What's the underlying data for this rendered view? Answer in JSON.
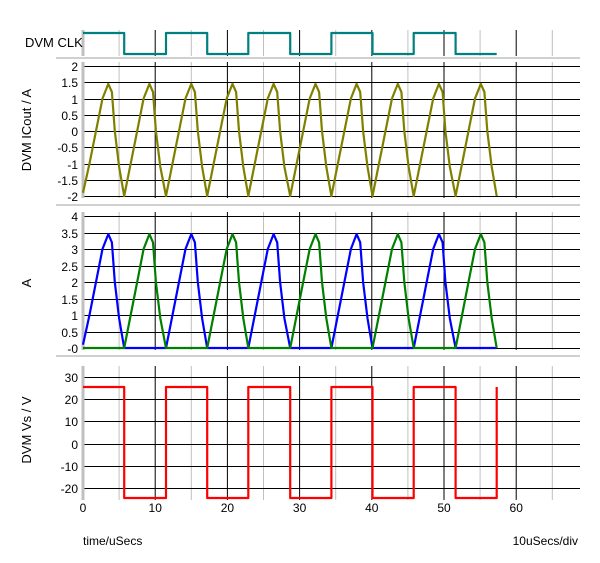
{
  "chart_data": [
    {
      "type": "line",
      "ylabel": "DVM CLK",
      "digital": true,
      "color": "#008080",
      "series": [
        {
          "x": [
            0,
            5.7,
            5.7,
            11.5,
            11.5,
            17.2,
            17.2,
            22.9,
            22.9,
            28.7,
            28.7,
            34.4,
            34.4,
            40.1,
            40.1,
            45.8,
            45.8,
            51.6,
            51.6,
            57.3
          ],
          "y": [
            1,
            1,
            0,
            0,
            1,
            1,
            0,
            0,
            1,
            1,
            0,
            0,
            1,
            1,
            0,
            0,
            1,
            1,
            0,
            0
          ],
          "color": "#008080"
        }
      ]
    },
    {
      "type": "line",
      "ylabel": "DVM ICout / A",
      "ylim": [
        -2,
        2
      ],
      "yticks": [
        "2",
        "1.5",
        "1",
        "0.5",
        "0",
        "-0.5",
        "-1",
        "-1.5",
        "-2"
      ],
      "series": [
        {
          "color": "#808000",
          "x": [
            0,
            0.9,
            1.8,
            2.7,
            3.5,
            4.0,
            4.4,
            5.0,
            5.7,
            6.6,
            7.5,
            8.4,
            9.2,
            9.7,
            10.1,
            10.7,
            11.5,
            12.4,
            13.3,
            14.2,
            15.0,
            15.5,
            15.9,
            16.5,
            17.2,
            18.1,
            19.0,
            19.9,
            20.7,
            21.2,
            21.6,
            22.2,
            22.9,
            23.8,
            24.7,
            25.6,
            26.4,
            26.9,
            27.3,
            27.9,
            28.7,
            29.6,
            30.5,
            31.4,
            32.2,
            32.7,
            33.1,
            33.7,
            34.4,
            35.3,
            36.2,
            37.1,
            37.9,
            38.4,
            38.8,
            39.4,
            40.1,
            41.0,
            41.9,
            42.8,
            43.6,
            44.1,
            44.5,
            45.1,
            45.8,
            46.7,
            47.6,
            48.5,
            49.3,
            49.8,
            50.2,
            50.8,
            51.6,
            52.5,
            53.4,
            54.3,
            55.1,
            55.6,
            56.0,
            56.6,
            57.3
          ],
          "y": [
            -1.9,
            -1,
            0,
            1,
            1.45,
            1.2,
            0,
            -1.1,
            -2,
            -1,
            0,
            1,
            1.45,
            1.2,
            0,
            -1.1,
            -2,
            -1,
            0,
            1,
            1.45,
            1.2,
            0,
            -1.1,
            -2,
            -1,
            0,
            1,
            1.45,
            1.2,
            0,
            -1.1,
            -2,
            -1,
            0,
            1,
            1.45,
            1.2,
            0,
            -1.1,
            -2,
            -1,
            0,
            1,
            1.45,
            1.2,
            0,
            -1.1,
            -2,
            -1,
            0,
            1,
            1.45,
            1.2,
            0,
            -1.1,
            -2,
            -1,
            0,
            1,
            1.45,
            1.2,
            0,
            -1.1,
            -2,
            -1,
            0,
            1,
            1.45,
            1.2,
            0,
            -1.1,
            -2,
            -1,
            0,
            1,
            1.45,
            1.2,
            0,
            -1.1,
            -2
          ]
        }
      ]
    },
    {
      "type": "line",
      "ylabel": "A",
      "ylim": [
        0,
        4
      ],
      "yticks": [
        "4",
        "3.5",
        "3",
        "2.5",
        "2",
        "1.5",
        "1",
        "0.5",
        "-0"
      ],
      "series": [
        {
          "color": "#0000ff",
          "x": [
            0,
            0.9,
            1.8,
            2.7,
            3.5,
            4.0,
            4.4,
            5.0,
            5.7,
            11.5,
            12.4,
            13.3,
            14.2,
            15.0,
            15.5,
            15.9,
            16.5,
            17.2,
            22.9,
            23.8,
            24.7,
            25.6,
            26.4,
            26.9,
            27.3,
            27.9,
            28.7,
            34.4,
            35.3,
            36.2,
            37.1,
            37.9,
            38.4,
            38.8,
            39.4,
            40.1,
            45.8,
            46.7,
            47.6,
            48.5,
            49.3,
            49.8,
            50.2,
            50.8,
            51.6,
            57.3
          ],
          "y": [
            0.1,
            1,
            2,
            3,
            3.45,
            3.2,
            2,
            0.9,
            0,
            0,
            1,
            2,
            3,
            3.45,
            3.2,
            2,
            0.9,
            0,
            0,
            1,
            2,
            3,
            3.45,
            3.2,
            2,
            0.9,
            0,
            0,
            1,
            2,
            3,
            3.45,
            3.2,
            2,
            0.9,
            0,
            0,
            1,
            2,
            3,
            3.45,
            3.2,
            2,
            0.9,
            0,
            0
          ]
        },
        {
          "color": "#008000",
          "x": [
            0,
            5.7,
            6.6,
            7.5,
            8.4,
            9.2,
            9.7,
            10.1,
            10.7,
            11.5,
            17.2,
            18.1,
            19.0,
            19.9,
            20.7,
            21.2,
            21.6,
            22.2,
            22.9,
            28.7,
            29.6,
            30.5,
            31.4,
            32.2,
            32.7,
            33.1,
            33.7,
            34.4,
            40.1,
            41.0,
            41.9,
            42.8,
            43.6,
            44.1,
            44.5,
            45.1,
            45.8,
            51.6,
            52.5,
            53.4,
            54.3,
            55.1,
            55.6,
            56.0,
            56.6,
            57.3
          ],
          "y": [
            0,
            0,
            1,
            2,
            3,
            3.45,
            3.2,
            2,
            0.9,
            0,
            0,
            1,
            2,
            3,
            3.45,
            3.2,
            2,
            0.9,
            0,
            0,
            1,
            2,
            3,
            3.45,
            3.2,
            2,
            0.9,
            0,
            0,
            1,
            2,
            3,
            3.45,
            3.2,
            2,
            0.9,
            0,
            0,
            1,
            2,
            3,
            3.45,
            3.2,
            2,
            0.9,
            0
          ]
        }
      ]
    },
    {
      "type": "line",
      "ylabel": "DVM Vs / V",
      "ylim": [
        -25,
        35
      ],
      "yticks": [
        "30",
        "20",
        "10",
        "0",
        "-10",
        "-20"
      ],
      "series": [
        {
          "color": "#ff0000",
          "x": [
            0,
            5.7,
            5.7,
            11.5,
            11.5,
            17.2,
            17.2,
            22.9,
            22.9,
            28.7,
            28.7,
            34.4,
            34.4,
            40.1,
            40.1,
            45.8,
            45.8,
            51.6,
            51.6,
            57.3,
            57.3
          ],
          "y": [
            25.5,
            25.5,
            -24.5,
            -24.5,
            25.5,
            25.5,
            -24.5,
            -24.5,
            25.5,
            25.5,
            -24.5,
            -24.5,
            25.5,
            25.5,
            -24.5,
            -24.5,
            25.5,
            25.5,
            -24.5,
            -24.5,
            25.5
          ]
        }
      ]
    }
  ],
  "xaxis": {
    "label": "time/uSecs",
    "scale": "10uSecs/div",
    "ticks": [
      "0",
      "10",
      "20",
      "30",
      "40",
      "50",
      "60"
    ],
    "xlim": [
      0,
      68.5
    ]
  }
}
